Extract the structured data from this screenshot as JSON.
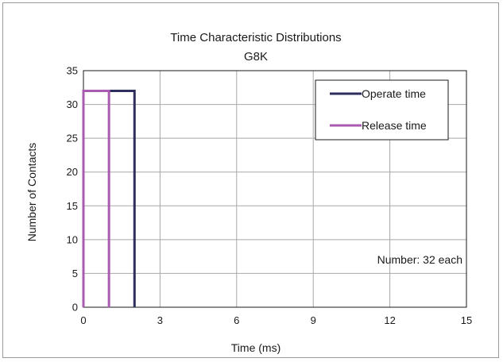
{
  "chart_data": {
    "type": "line",
    "title": "Time Characteristic Distributions",
    "subtitle": "G8K",
    "xlabel": "Time (ms)",
    "ylabel": "Number of Contacts",
    "xlim": [
      0,
      15
    ],
    "ylim": [
      0,
      35
    ],
    "x_ticks": [
      0,
      3,
      6,
      9,
      12,
      15
    ],
    "y_ticks": [
      0,
      5,
      10,
      15,
      20,
      25,
      30,
      35
    ],
    "grid": true,
    "legend_position": "top-right",
    "annotation": "Number: 32 each",
    "series": [
      {
        "name": "Operate time",
        "color": "#2e2e5e",
        "points": [
          [
            0,
            0
          ],
          [
            0,
            32
          ],
          [
            2,
            32
          ],
          [
            2,
            0
          ]
        ]
      },
      {
        "name": "Release time",
        "color": "#a95bb0",
        "points": [
          [
            0,
            0
          ],
          [
            0,
            32
          ],
          [
            1,
            32
          ],
          [
            1,
            0
          ]
        ]
      }
    ]
  }
}
